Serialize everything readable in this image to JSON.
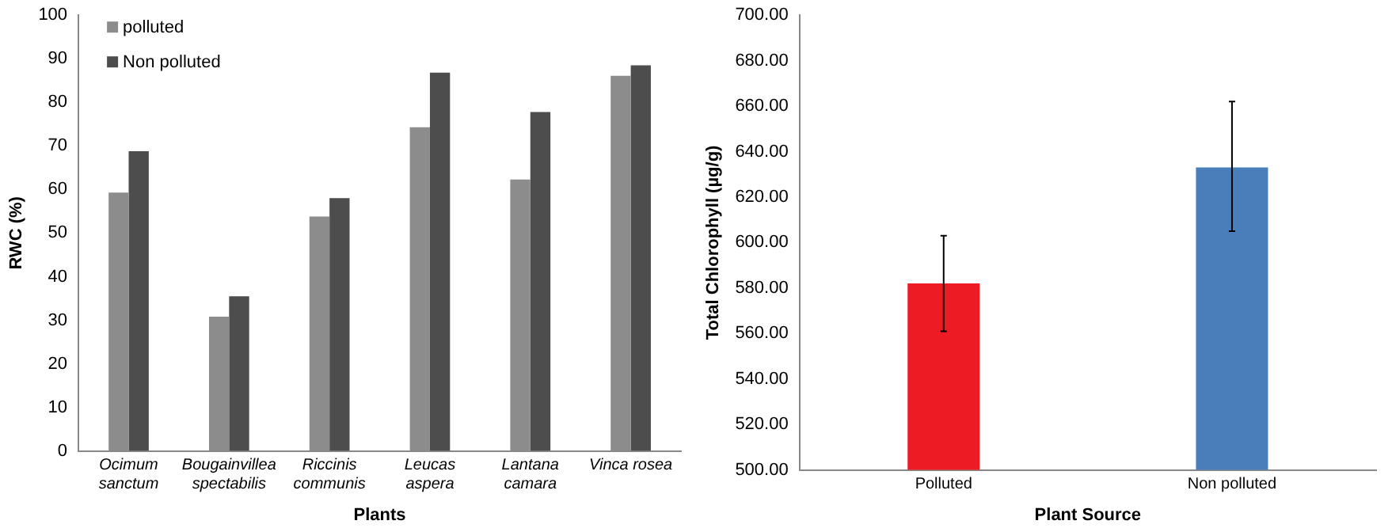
{
  "chart_data": [
    {
      "type": "bar",
      "xlabel": "Plants",
      "ylabel": "RWC (%)",
      "categories": [
        "Ocimum sanctum",
        "Bougainvillea spectabilis",
        "Riccinis communis",
        "Leucas aspera",
        "Lantana camara",
        "Vinca rosea"
      ],
      "series": [
        {
          "name": "polluted",
          "color": "#8c8c8c",
          "values": [
            59.3,
            30.8,
            53.8,
            74.3,
            62.3,
            86.1
          ]
        },
        {
          "name": "Non polluted",
          "color": "#4d4d4d",
          "values": [
            68.8,
            35.5,
            58,
            86.8,
            77.8,
            88.5
          ]
        }
      ],
      "ylim": [
        0,
        100
      ],
      "yticks": [
        0,
        10,
        20,
        30,
        40,
        50,
        60,
        70,
        80,
        90,
        100
      ],
      "grid": false,
      "legend": "top left"
    },
    {
      "type": "bar",
      "xlabel": "Plant Source",
      "ylabel": "Total Chlorophyll (µg/g)",
      "categories": [
        "Polluted",
        "Non polluted"
      ],
      "values": [
        582,
        633
      ],
      "colors": [
        "#ed1c24",
        "#4a7ebb"
      ],
      "errors": [
        [
          561,
          603
        ],
        [
          605,
          662
        ]
      ],
      "ylim": [
        500,
        700
      ],
      "yticks": [
        {
          "value": 500,
          "label": "500.00"
        },
        {
          "value": 520,
          "label": "520.00"
        },
        {
          "value": 540,
          "label": "540.00"
        },
        {
          "value": 560,
          "label": "560.00"
        },
        {
          "value": 580,
          "label": "580.00"
        },
        {
          "value": 600,
          "label": "600.00"
        },
        {
          "value": 620,
          "label": "620.00"
        },
        {
          "value": 640,
          "label": "640.00"
        },
        {
          "value": 660,
          "label": "660.00"
        },
        {
          "value": 680,
          "label": "680.00"
        },
        {
          "value": 700,
          "label": "700.00"
        }
      ],
      "grid": false
    }
  ]
}
